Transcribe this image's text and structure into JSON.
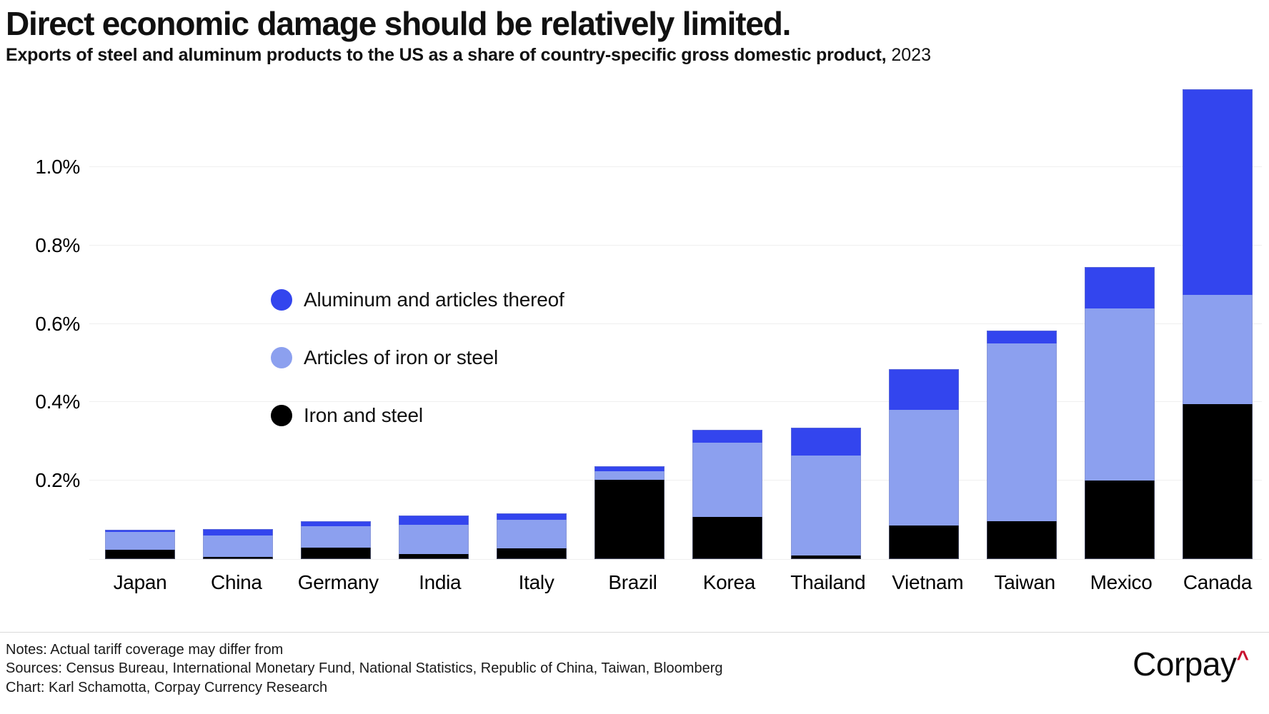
{
  "header": {
    "title": "Direct economic damage should be relatively limited.",
    "subtitle_main": "Exports of steel and aluminum products to the US as a share of country-specific gross domestic product,",
    "subtitle_year": "2023"
  },
  "chart_data": {
    "type": "bar",
    "stacked": true,
    "title": "Direct economic damage should be relatively limited.",
    "subtitle": "Exports of steel and aluminum products to the US as a share of country-specific gross domestic product, 2023",
    "unit": "percent of GDP",
    "categories": [
      "Japan",
      "China",
      "Germany",
      "India",
      "Italy",
      "Brazil",
      "Korea",
      "Thailand",
      "Vietnam",
      "Taiwan",
      "Mexico",
      "Canada"
    ],
    "series": [
      {
        "name": "Iron and steel",
        "color": "#000000",
        "values": [
          0.024,
          0.005,
          0.029,
          0.013,
          0.027,
          0.202,
          0.107,
          0.009,
          0.086,
          0.097,
          0.2,
          0.395
        ]
      },
      {
        "name": "Articles of iron or steel",
        "color": "#8ca0ef",
        "values": [
          0.046,
          0.056,
          0.055,
          0.075,
          0.073,
          0.022,
          0.19,
          0.255,
          0.295,
          0.453,
          0.439,
          0.279
        ]
      },
      {
        "name": "Aluminum and articles thereof",
        "color": "#3345ee",
        "values": [
          0.005,
          0.016,
          0.013,
          0.024,
          0.016,
          0.013,
          0.033,
          0.071,
          0.104,
          0.033,
          0.107,
          0.525
        ]
      }
    ],
    "totals": [
      0.075,
      0.077,
      0.097,
      0.112,
      0.116,
      0.237,
      0.33,
      0.335,
      0.485,
      0.583,
      0.746,
      1.199
    ],
    "ylim": [
      0,
      1.226
    ],
    "ytick_values": [
      0.2,
      0.4,
      0.6,
      0.8,
      1.0
    ],
    "ytick_labels": [
      "0.2%",
      "0.4%",
      "0.6%",
      "0.8%",
      "1.0%"
    ],
    "grid": "horizontal",
    "legend_position": "upper-left-inside"
  },
  "legend": {
    "items": [
      {
        "label": "Aluminum and articles thereof",
        "color": "#3345ee"
      },
      {
        "label": "Articles of iron or steel",
        "color": "#8ca0ef"
      },
      {
        "label": "Iron and steel",
        "color": "#000000"
      }
    ]
  },
  "footer": {
    "notes": "Notes: Actual tariff coverage may differ from",
    "sources": "Sources: Census Bureau, International Monetary Fund, National Statistics, Republic of China, Taiwan, Bloomberg",
    "credit": "Chart: Karl Schamotta, Corpay Currency Research",
    "logo_text": "Corpay",
    "logo_mark": "^",
    "logo_mark_color": "#c8102e"
  }
}
